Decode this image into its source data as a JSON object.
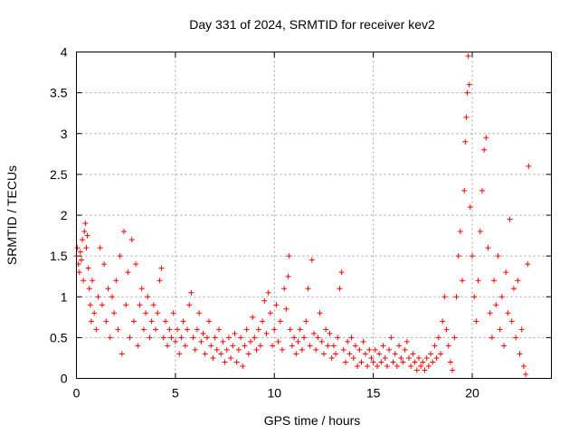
{
  "chart_data": {
    "type": "scatter",
    "title": "Day 331 of 2024, SRMTID for receiver kev2",
    "xlabel": "GPS time / hours",
    "ylabel": "SRMTID / TECUs",
    "xlim": [
      0,
      24
    ],
    "ylim": [
      0,
      4
    ],
    "xticks": [
      0,
      5,
      10,
      15,
      20
    ],
    "xtick_labels": [
      "0",
      "5",
      "10",
      "15",
      "20"
    ],
    "yticks": [
      0,
      0.5,
      1,
      1.5,
      2,
      2.5,
      3,
      3.5,
      4
    ],
    "ytick_labels": [
      "0",
      "0.5",
      "1",
      "1.5",
      "2",
      "2.5",
      "3",
      "3.5",
      "4"
    ],
    "grid": true,
    "marker": "plus",
    "color": "#ff0000",
    "series": [
      {
        "name": "SRMTID",
        "points": [
          [
            0.0,
            1.5
          ],
          [
            0.05,
            1.6
          ],
          [
            0.1,
            1.4
          ],
          [
            0.15,
            1.3
          ],
          [
            0.2,
            1.55
          ],
          [
            0.25,
            1.45
          ],
          [
            0.3,
            1.7
          ],
          [
            0.35,
            1.2
          ],
          [
            0.4,
            1.8
          ],
          [
            0.45,
            1.9
          ],
          [
            0.5,
            1.6
          ],
          [
            0.55,
            1.75
          ],
          [
            0.6,
            1.35
          ],
          [
            0.65,
            1.1
          ],
          [
            0.7,
            0.9
          ],
          [
            0.75,
            0.7
          ],
          [
            0.8,
            1.2
          ],
          [
            0.9,
            0.8
          ],
          [
            1.0,
            0.6
          ],
          [
            1.1,
            1.0
          ],
          [
            1.2,
            1.6
          ],
          [
            1.3,
            0.9
          ],
          [
            1.4,
            1.4
          ],
          [
            1.5,
            0.7
          ],
          [
            1.6,
            1.1
          ],
          [
            1.7,
            0.5
          ],
          [
            1.8,
            1.0
          ],
          [
            1.9,
            0.8
          ],
          [
            2.0,
            1.2
          ],
          [
            2.1,
            0.6
          ],
          [
            2.2,
            1.5
          ],
          [
            2.3,
            0.3
          ],
          [
            2.4,
            1.8
          ],
          [
            2.5,
            0.9
          ],
          [
            2.6,
            1.3
          ],
          [
            2.7,
            0.5
          ],
          [
            2.8,
            1.7
          ],
          [
            2.9,
            0.7
          ],
          [
            3.0,
            1.4
          ],
          [
            3.1,
            0.4
          ],
          [
            3.2,
            0.9
          ],
          [
            3.3,
            1.1
          ],
          [
            3.4,
            0.6
          ],
          [
            3.5,
            0.8
          ],
          [
            3.6,
            1.0
          ],
          [
            3.7,
            0.5
          ],
          [
            3.8,
            0.7
          ],
          [
            3.9,
            0.9
          ],
          [
            4.0,
            0.6
          ],
          [
            4.1,
            0.8
          ],
          [
            4.2,
            1.2
          ],
          [
            4.3,
            1.35
          ],
          [
            4.4,
            0.5
          ],
          [
            4.5,
            0.7
          ],
          [
            4.6,
            0.4
          ],
          [
            4.7,
            0.6
          ],
          [
            4.8,
            0.5
          ],
          [
            4.9,
            0.8
          ],
          [
            5.0,
            0.45
          ],
          [
            5.1,
            0.6
          ],
          [
            5.2,
            0.3
          ],
          [
            5.3,
            0.5
          ],
          [
            5.4,
            0.7
          ],
          [
            5.5,
            0.4
          ],
          [
            5.6,
            0.6
          ],
          [
            5.7,
            0.9
          ],
          [
            5.8,
            1.05
          ],
          [
            5.9,
            0.5
          ],
          [
            6.0,
            0.35
          ],
          [
            6.1,
            0.6
          ],
          [
            6.2,
            0.8
          ],
          [
            6.3,
            0.45
          ],
          [
            6.4,
            0.55
          ],
          [
            6.5,
            0.3
          ],
          [
            6.6,
            0.5
          ],
          [
            6.7,
            0.7
          ],
          [
            6.8,
            0.4
          ],
          [
            6.9,
            0.25
          ],
          [
            7.0,
            0.5
          ],
          [
            7.1,
            0.35
          ],
          [
            7.2,
            0.6
          ],
          [
            7.3,
            0.3
          ],
          [
            7.4,
            0.45
          ],
          [
            7.5,
            0.2
          ],
          [
            7.6,
            0.35
          ],
          [
            7.7,
            0.5
          ],
          [
            7.8,
            0.25
          ],
          [
            7.9,
            0.4
          ],
          [
            8.0,
            0.55
          ],
          [
            8.1,
            0.2
          ],
          [
            8.2,
            0.35
          ],
          [
            8.3,
            0.5
          ],
          [
            8.4,
            0.15
          ],
          [
            8.5,
            0.4
          ],
          [
            8.6,
            0.6
          ],
          [
            8.7,
            0.3
          ],
          [
            8.8,
            0.45
          ],
          [
            8.9,
            0.75
          ],
          [
            9.0,
            0.5
          ],
          [
            9.1,
            0.35
          ],
          [
            9.2,
            0.6
          ],
          [
            9.3,
            0.4
          ],
          [
            9.4,
            0.7
          ],
          [
            9.5,
            0.95
          ],
          [
            9.6,
            0.55
          ],
          [
            9.7,
            1.05
          ],
          [
            9.8,
            0.8
          ],
          [
            9.9,
            0.4
          ],
          [
            10.0,
            0.6
          ],
          [
            10.1,
            0.9
          ],
          [
            10.2,
            0.45
          ],
          [
            10.3,
            0.7
          ],
          [
            10.4,
            0.35
          ],
          [
            10.5,
            1.1
          ],
          [
            10.6,
            0.85
          ],
          [
            10.7,
            1.25
          ],
          [
            10.75,
            1.5
          ],
          [
            10.8,
            0.6
          ],
          [
            10.9,
            0.4
          ],
          [
            11.0,
            0.5
          ],
          [
            11.1,
            0.3
          ],
          [
            11.2,
            0.45
          ],
          [
            11.3,
            0.6
          ],
          [
            11.4,
            0.35
          ],
          [
            11.5,
            0.5
          ],
          [
            11.6,
            0.7
          ],
          [
            11.7,
            1.1
          ],
          [
            11.8,
            0.4
          ],
          [
            11.9,
            1.45
          ],
          [
            12.0,
            0.55
          ],
          [
            12.1,
            0.35
          ],
          [
            12.2,
            0.5
          ],
          [
            12.3,
            0.8
          ],
          [
            12.4,
            0.45
          ],
          [
            12.5,
            0.3
          ],
          [
            12.6,
            0.6
          ],
          [
            12.7,
            0.4
          ],
          [
            12.8,
            0.55
          ],
          [
            12.9,
            0.25
          ],
          [
            13.0,
            0.4
          ],
          [
            13.1,
            0.3
          ],
          [
            13.2,
            0.5
          ],
          [
            13.3,
            1.1
          ],
          [
            13.4,
            1.3
          ],
          [
            13.5,
            0.35
          ],
          [
            13.6,
            0.2
          ],
          [
            13.7,
            0.45
          ],
          [
            13.8,
            0.3
          ],
          [
            13.9,
            0.5
          ],
          [
            14.0,
            0.25
          ],
          [
            14.1,
            0.4
          ],
          [
            14.2,
            0.15
          ],
          [
            14.3,
            0.35
          ],
          [
            14.4,
            0.2
          ],
          [
            14.5,
            0.45
          ],
          [
            14.6,
            0.3
          ],
          [
            14.7,
            0.15
          ],
          [
            14.8,
            0.35
          ],
          [
            14.9,
            0.25
          ],
          [
            15.0,
            0.2
          ],
          [
            15.1,
            0.35
          ],
          [
            15.2,
            0.15
          ],
          [
            15.3,
            0.3
          ],
          [
            15.4,
            0.2
          ],
          [
            15.5,
            0.4
          ],
          [
            15.6,
            0.25
          ],
          [
            15.7,
            0.15
          ],
          [
            15.8,
            0.35
          ],
          [
            15.9,
            0.5
          ],
          [
            16.0,
            0.2
          ],
          [
            16.1,
            0.3
          ],
          [
            16.2,
            0.15
          ],
          [
            16.3,
            0.4
          ],
          [
            16.4,
            0.25
          ],
          [
            16.5,
            0.2
          ],
          [
            16.6,
            0.35
          ],
          [
            16.7,
            0.45
          ],
          [
            16.8,
            0.25
          ],
          [
            16.9,
            0.15
          ],
          [
            17.0,
            0.3
          ],
          [
            17.1,
            0.2
          ],
          [
            17.2,
            0.1
          ],
          [
            17.3,
            0.25
          ],
          [
            17.4,
            0.15
          ],
          [
            17.5,
            0.2
          ],
          [
            17.6,
            0.1
          ],
          [
            17.7,
            0.25
          ],
          [
            17.8,
            0.15
          ],
          [
            17.9,
            0.3
          ],
          [
            18.0,
            0.2
          ],
          [
            18.1,
            0.4
          ],
          [
            18.2,
            0.25
          ],
          [
            18.3,
            0.5
          ],
          [
            18.4,
            0.3
          ],
          [
            18.5,
            0.7
          ],
          [
            18.6,
            1.0
          ],
          [
            18.7,
            0.6
          ],
          [
            18.8,
            0.4
          ],
          [
            18.9,
            0.2
          ],
          [
            19.0,
            0.1
          ],
          [
            19.1,
            0.5
          ],
          [
            19.2,
            1.0
          ],
          [
            19.3,
            1.5
          ],
          [
            19.4,
            1.8
          ],
          [
            19.5,
            1.2
          ],
          [
            19.6,
            2.3
          ],
          [
            19.65,
            2.9
          ],
          [
            19.7,
            3.2
          ],
          [
            19.75,
            3.5
          ],
          [
            19.8,
            3.95
          ],
          [
            19.85,
            3.6
          ],
          [
            19.9,
            2.1
          ],
          [
            20.0,
            1.5
          ],
          [
            20.1,
            1.0
          ],
          [
            20.2,
            0.7
          ],
          [
            20.3,
            1.2
          ],
          [
            20.4,
            1.8
          ],
          [
            20.5,
            2.3
          ],
          [
            20.6,
            2.8
          ],
          [
            20.7,
            2.95
          ],
          [
            20.8,
            1.6
          ],
          [
            20.9,
            0.8
          ],
          [
            21.0,
            0.5
          ],
          [
            21.1,
            1.2
          ],
          [
            21.2,
            0.9
          ],
          [
            21.3,
            1.5
          ],
          [
            21.4,
            0.6
          ],
          [
            21.5,
            1.0
          ],
          [
            21.6,
            0.4
          ],
          [
            21.7,
            1.3
          ],
          [
            21.8,
            0.8
          ],
          [
            21.9,
            1.95
          ],
          [
            22.0,
            0.7
          ],
          [
            22.1,
            1.1
          ],
          [
            22.2,
            0.5
          ],
          [
            22.3,
            1.2
          ],
          [
            22.4,
            0.3
          ],
          [
            22.5,
            0.6
          ],
          [
            22.6,
            0.15
          ],
          [
            22.7,
            0.05
          ],
          [
            22.8,
            1.4
          ],
          [
            22.85,
            2.6
          ]
        ]
      }
    ]
  }
}
